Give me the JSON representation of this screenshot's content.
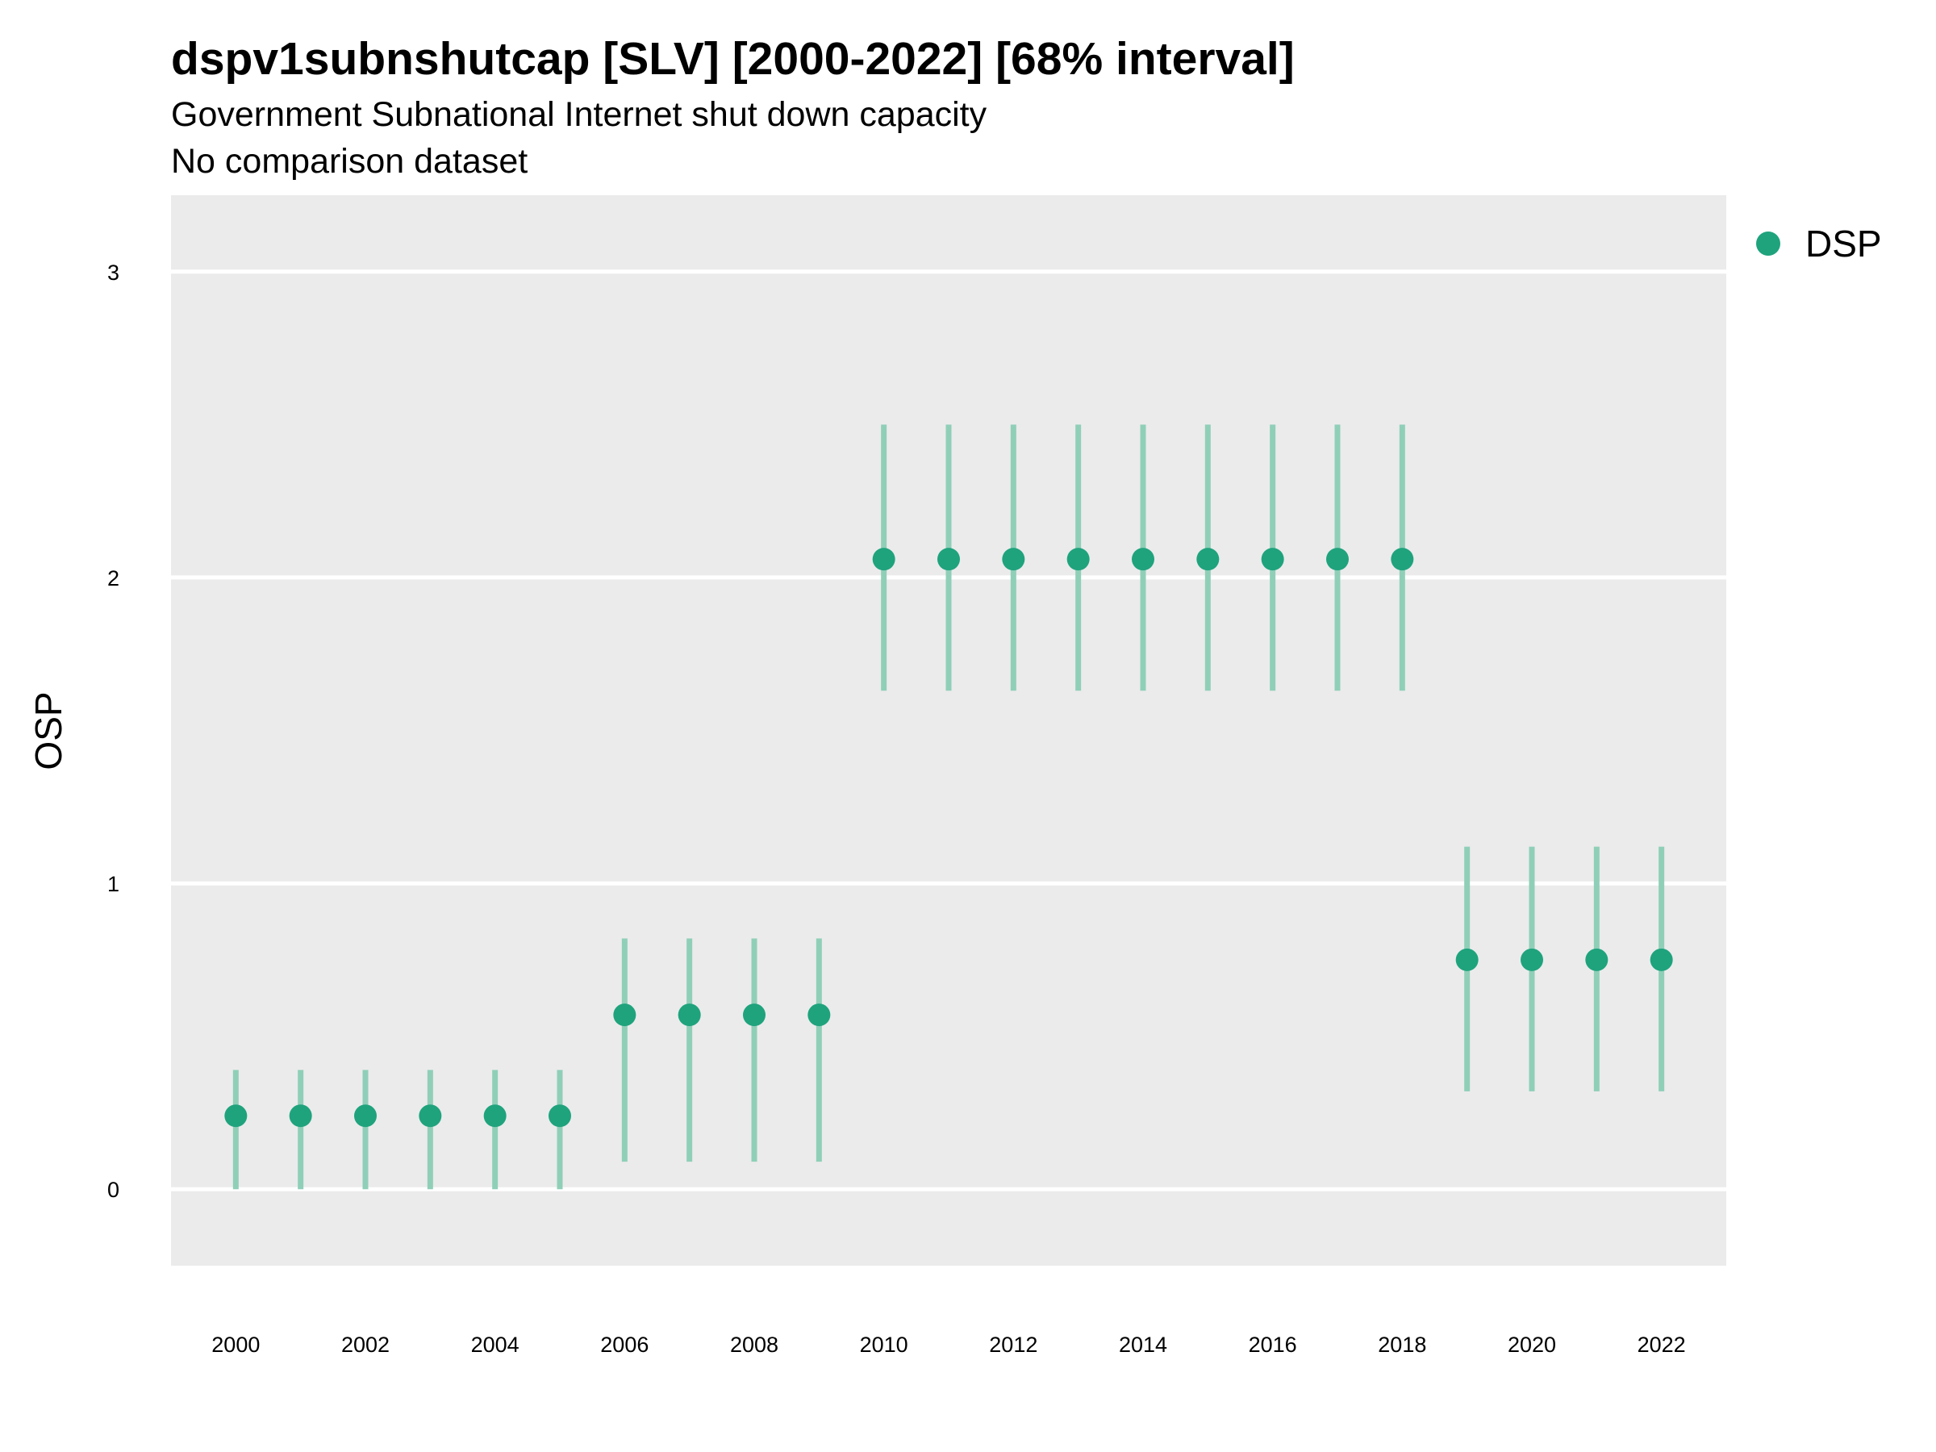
{
  "chart_data": {
    "type": "scatter",
    "title": "dspv1subnshutcap [SLV] [2000-2022] [68% interval]",
    "subtitle": "Government Subnational Internet shut down capacity",
    "subtitle2": "No comparison dataset",
    "xlabel": "",
    "ylabel": "OSP",
    "xlim": [
      1999,
      2023
    ],
    "ylim": [
      -0.25,
      3.25
    ],
    "x_ticks": [
      2000,
      2002,
      2004,
      2006,
      2008,
      2010,
      2012,
      2014,
      2016,
      2018,
      2020,
      2022
    ],
    "y_ticks": [
      0,
      1,
      2,
      3
    ],
    "grid": true,
    "legend_position": "right",
    "colors": {
      "point": "#1fa37d",
      "interval": "#8fcfb8",
      "panel": "#ebebeb",
      "grid": "#ffffff"
    },
    "series": [
      {
        "name": "DSP",
        "x": [
          2000,
          2001,
          2002,
          2003,
          2004,
          2005,
          2006,
          2007,
          2008,
          2009,
          2010,
          2011,
          2012,
          2013,
          2014,
          2015,
          2016,
          2017,
          2018,
          2019,
          2020,
          2021,
          2022
        ],
        "y": [
          0.24,
          0.24,
          0.24,
          0.24,
          0.24,
          0.24,
          0.57,
          0.57,
          0.57,
          0.57,
          2.06,
          2.06,
          2.06,
          2.06,
          2.06,
          2.06,
          2.06,
          2.06,
          2.06,
          0.75,
          0.75,
          0.75,
          0.75
        ],
        "lower": [
          0.0,
          0.0,
          0.0,
          0.0,
          0.0,
          0.0,
          0.09,
          0.09,
          0.09,
          0.09,
          1.63,
          1.63,
          1.63,
          1.63,
          1.63,
          1.63,
          1.63,
          1.63,
          1.63,
          0.32,
          0.32,
          0.32,
          0.32
        ],
        "upper": [
          0.39,
          0.39,
          0.39,
          0.39,
          0.39,
          0.39,
          0.82,
          0.82,
          0.82,
          0.82,
          2.5,
          2.5,
          2.5,
          2.5,
          2.5,
          2.5,
          2.5,
          2.5,
          2.5,
          1.12,
          1.12,
          1.12,
          1.12
        ]
      }
    ]
  }
}
